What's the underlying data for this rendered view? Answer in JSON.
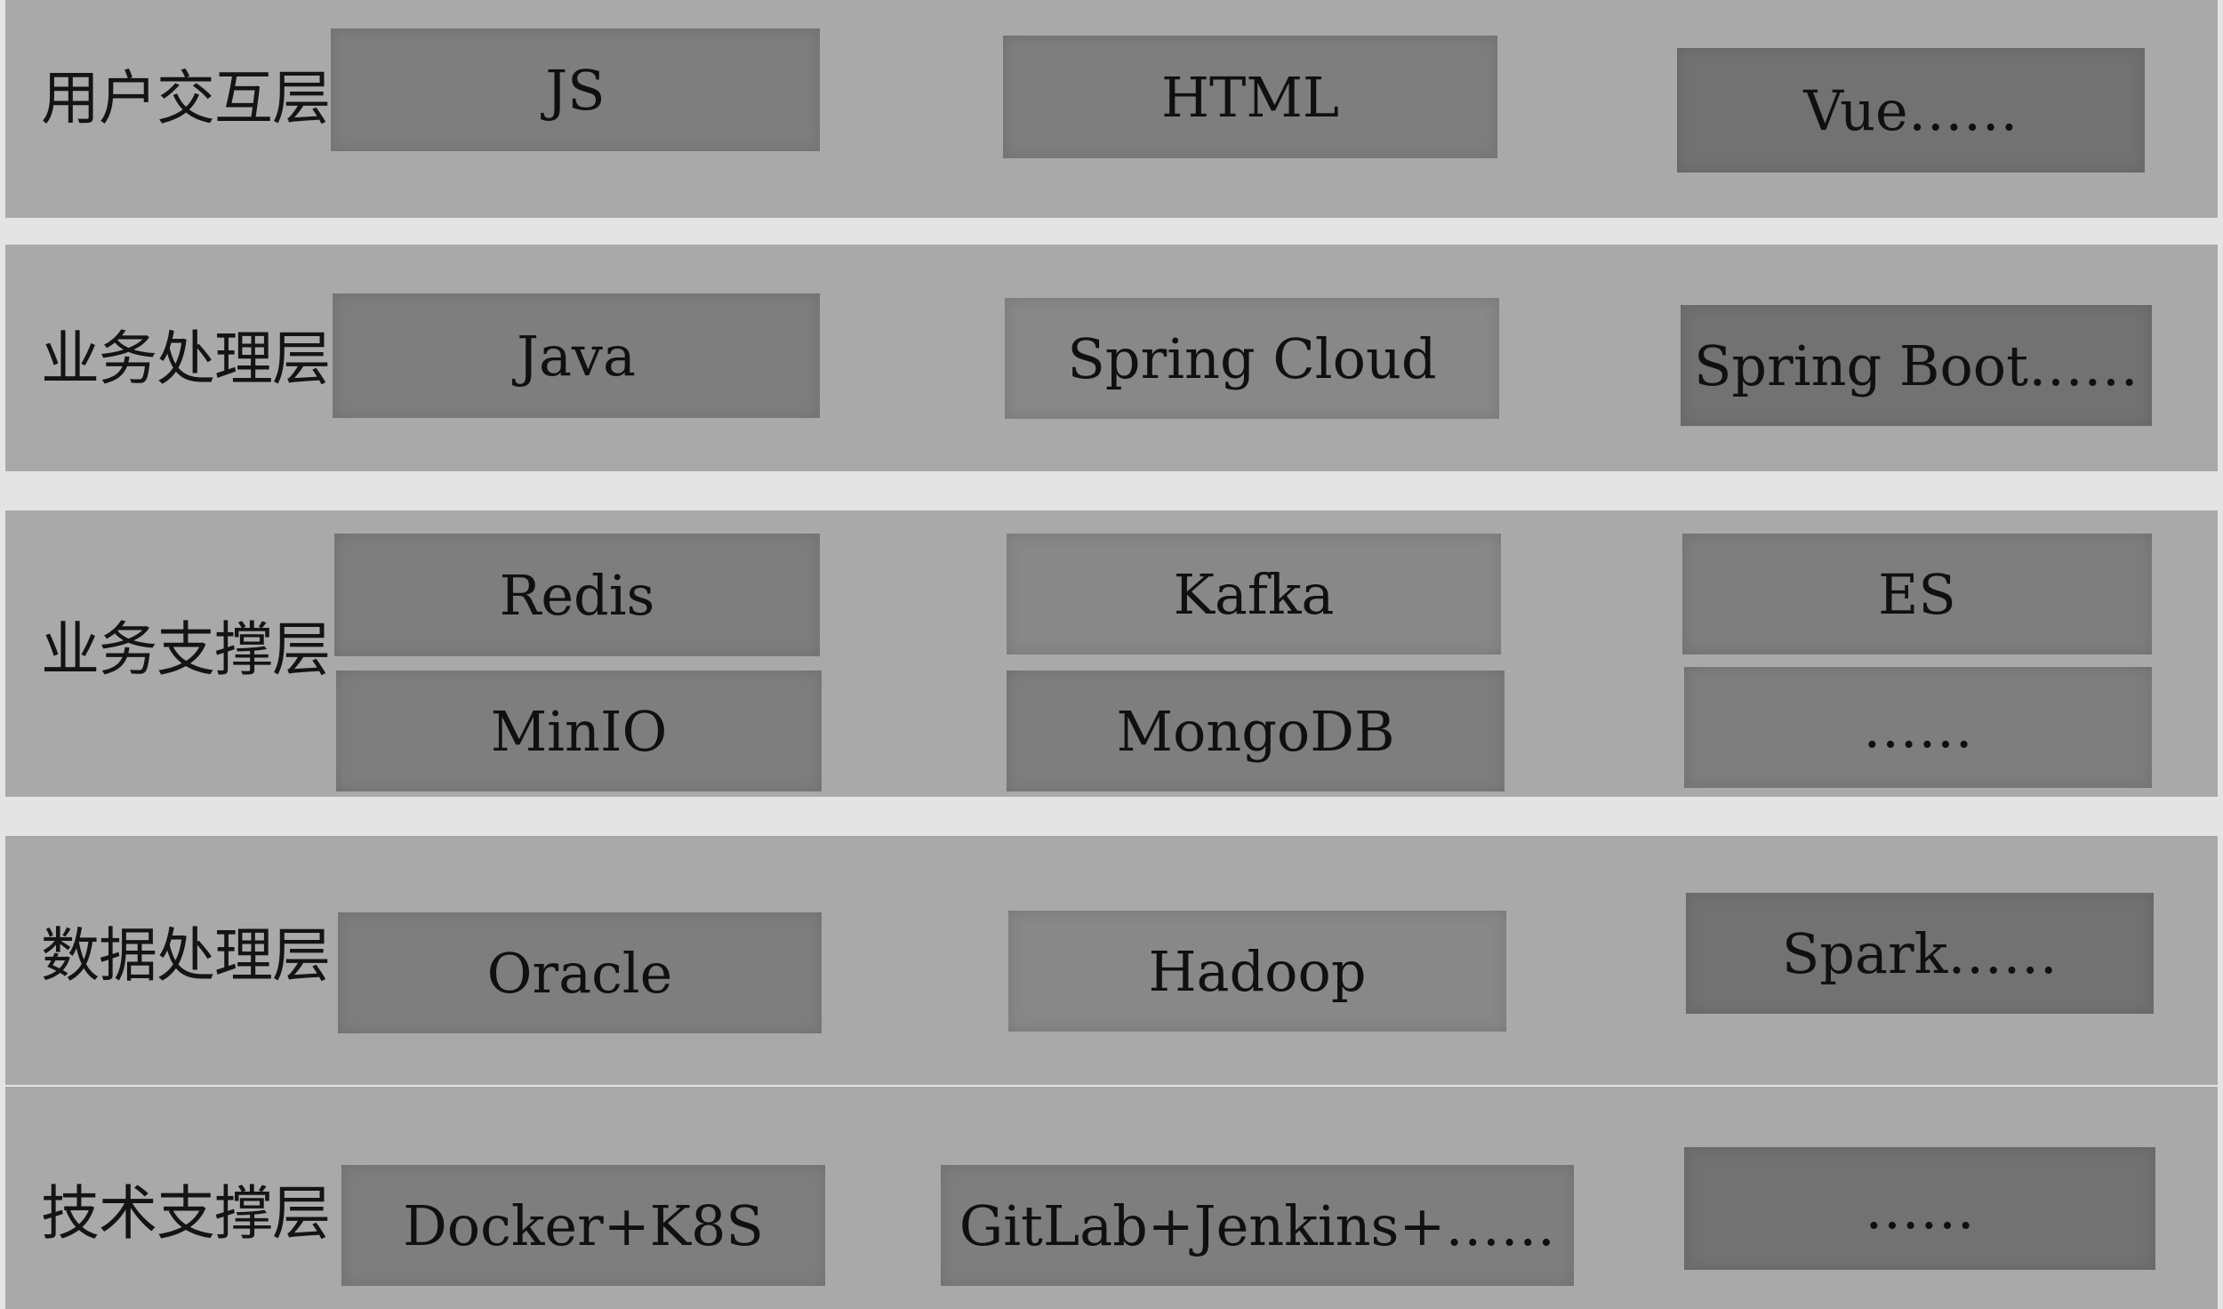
{
  "layers": [
    {
      "name": "用户交互层",
      "items": [
        "JS",
        "HTML",
        "Vue……"
      ]
    },
    {
      "name": "业务处理层",
      "items": [
        "Java",
        "Spring Cloud",
        "Spring Boot……"
      ]
    },
    {
      "name": "业务支撑层",
      "items": [
        "Redis",
        "Kafka",
        "ES",
        "MinIO",
        "MongoDB",
        "……"
      ]
    },
    {
      "name": "数据处理层",
      "items": [
        "Oracle",
        "Hadoop",
        "Spark……"
      ]
    },
    {
      "name": "技术支撑层",
      "items": [
        "Docker+K8S",
        "GitLab+Jenkins+……",
        "……"
      ]
    }
  ]
}
